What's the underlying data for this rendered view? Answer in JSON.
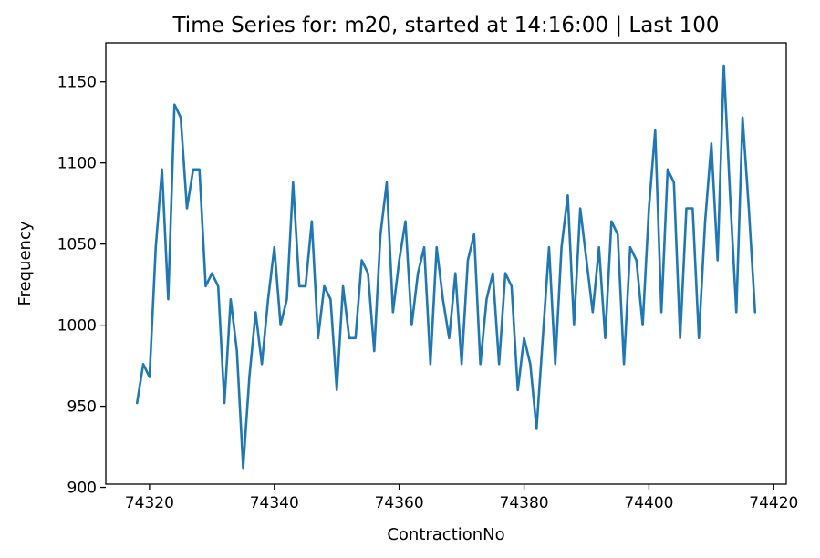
{
  "chart_data": {
    "type": "line",
    "title": "Time Series for: m20, started at 14:16:00 | Last 100",
    "xlabel": "ContractionNo",
    "ylabel": "Frequency",
    "xlim": [
      74313,
      74422
    ],
    "ylim": [
      902,
      1174
    ],
    "xticks": [
      74320,
      74340,
      74360,
      74380,
      74400,
      74420
    ],
    "yticks": [
      900,
      950,
      1000,
      1050,
      1100,
      1150
    ],
    "grid": false,
    "color": "#1f77b4",
    "x_start": 74318,
    "x_end": 74417,
    "series": [
      {
        "values": [
          952,
          976,
          968,
          1048,
          1096,
          1016,
          1136,
          1128,
          1072,
          1096,
          1096,
          1024,
          1032,
          1024,
          952,
          1016,
          984,
          912,
          968,
          1008,
          976,
          1016,
          1048,
          1000,
          1016,
          1088,
          1024,
          1024,
          1064,
          992,
          1024,
          1016,
          960,
          1024,
          992,
          992,
          1040,
          1032,
          984,
          1056,
          1088,
          1008,
          1040,
          1064,
          1000,
          1032,
          1048,
          976,
          1048,
          1016,
          992,
          1032,
          976,
          1040,
          1056,
          976,
          1016,
          1032,
          976,
          1032,
          1024,
          960,
          992,
          976,
          936,
          992,
          1048,
          976,
          1048,
          1080,
          1000,
          1072,
          1040,
          1008,
          1048,
          992,
          1064,
          1056,
          976,
          1048,
          1040,
          1000,
          1072,
          1120,
          1008,
          1096,
          1088,
          992,
          1072,
          1072,
          992,
          1064,
          1112,
          1040,
          1160,
          1080,
          1008,
          1128,
          1072,
          1008
        ]
      }
    ]
  }
}
